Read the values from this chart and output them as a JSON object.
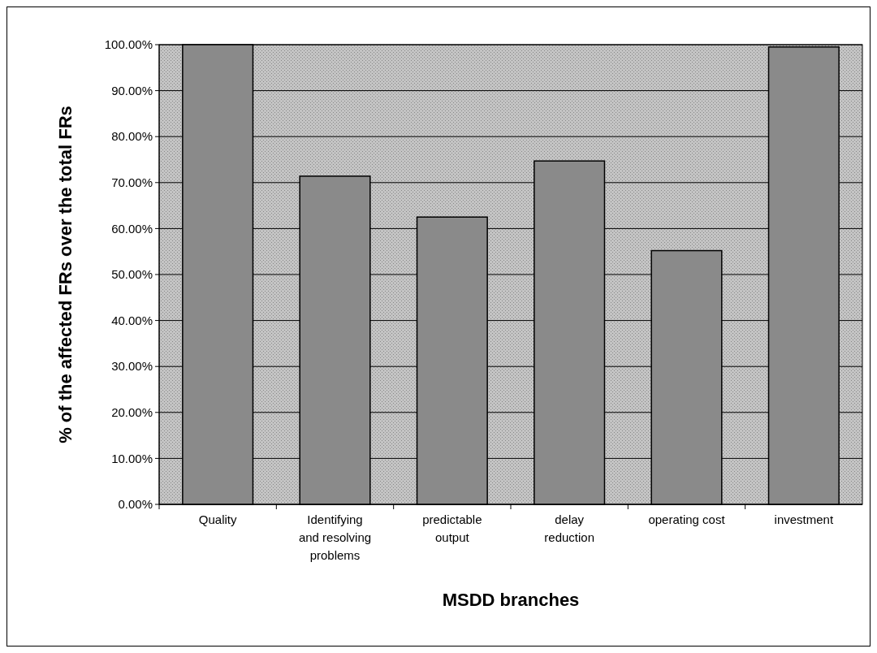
{
  "chart_data": {
    "type": "bar",
    "xlabel": "MSDD branches",
    "ylabel": "% of the affected FRs over the total FRs",
    "categories": [
      "Quality",
      "Identifying and resolving problems",
      "predictable output",
      "delay reduction",
      "operating cost",
      "investment"
    ],
    "values": [
      100,
      71.4,
      62.5,
      74.7,
      55.2,
      99.5
    ],
    "color": "#8a8a8a",
    "ylim": [
      0,
      100
    ],
    "yticks": [
      {
        "value": 0,
        "label": "0.00%"
      },
      {
        "value": 10,
        "label": "10.00%"
      },
      {
        "value": 20,
        "label": "20.00%"
      },
      {
        "value": 30,
        "label": "30.00%"
      },
      {
        "value": 40,
        "label": "40.00%"
      },
      {
        "value": 50,
        "label": "50.00%"
      },
      {
        "value": 60,
        "label": "60.00%"
      },
      {
        "value": 70,
        "label": "70.00%"
      },
      {
        "value": 80,
        "label": "80.00%"
      },
      {
        "value": 90,
        "label": "90.00%"
      },
      {
        "value": 100,
        "label": "100.00%"
      }
    ],
    "grid": "y"
  }
}
